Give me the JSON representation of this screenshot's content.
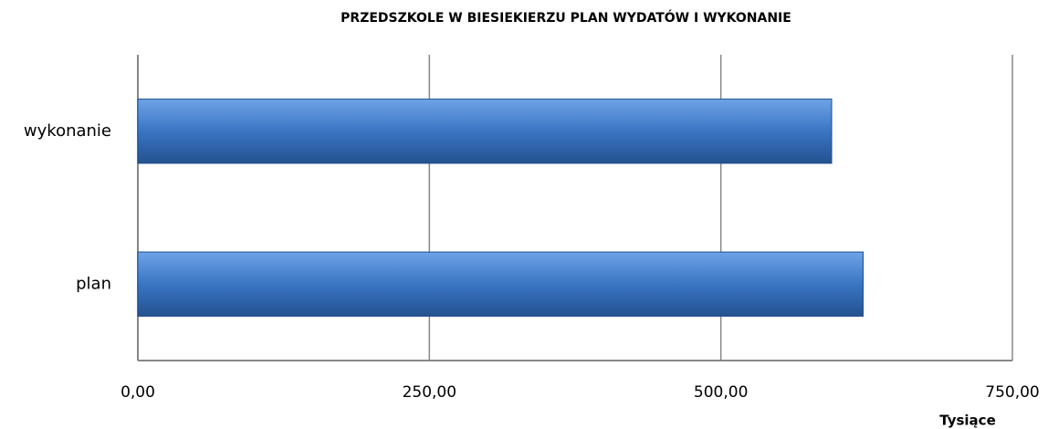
{
  "chart_data": {
    "type": "bar",
    "orientation": "horizontal",
    "title": "PRZEDSZKOLE W BIESIEKIERZU PLAN WYDATÓW I WYKONANIE",
    "x_label": "Tysiące",
    "categories": [
      "wykonanie",
      "plan"
    ],
    "values": [
      595,
      622
    ],
    "color": "#3a75c4",
    "xlim": [
      0,
      750
    ],
    "xticks": [
      {
        "value": 0,
        "label": "0,00"
      },
      {
        "value": 250,
        "label": "250,00"
      },
      {
        "value": 500,
        "label": "500,00"
      },
      {
        "value": 750,
        "label": "750,00"
      }
    ],
    "grid": true
  }
}
